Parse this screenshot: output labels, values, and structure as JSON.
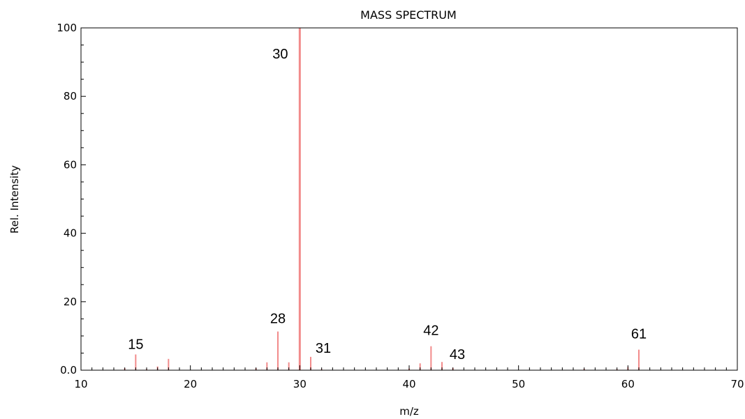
{
  "chart_data": {
    "type": "bar",
    "title": "MASS SPECTRUM",
    "xlabel": "m/z",
    "ylabel": "Rel. Intensity",
    "xlim": [
      10,
      70
    ],
    "ylim": [
      0,
      100
    ],
    "x_ticks": [
      "10",
      "20",
      "30",
      "40",
      "50",
      "60",
      "70"
    ],
    "y_ticks": [
      "0.0",
      "20",
      "40",
      "60",
      "80",
      "100"
    ],
    "grid": false,
    "bar_color": "#f28b8b",
    "peaks": [
      {
        "mz": 14,
        "intensity": 0.6
      },
      {
        "mz": 15,
        "intensity": 4.6
      },
      {
        "mz": 16,
        "intensity": 0.3
      },
      {
        "mz": 17,
        "intensity": 1.1
      },
      {
        "mz": 18,
        "intensity": 3.3
      },
      {
        "mz": 26,
        "intensity": 0.6
      },
      {
        "mz": 27,
        "intensity": 2.3
      },
      {
        "mz": 28,
        "intensity": 11.3
      },
      {
        "mz": 29,
        "intensity": 2.3
      },
      {
        "mz": 30,
        "intensity": 100
      },
      {
        "mz": 31,
        "intensity": 3.9
      },
      {
        "mz": 32,
        "intensity": 0.3
      },
      {
        "mz": 40,
        "intensity": 0.5
      },
      {
        "mz": 41,
        "intensity": 2.0
      },
      {
        "mz": 42,
        "intensity": 7.0
      },
      {
        "mz": 43,
        "intensity": 2.4
      },
      {
        "mz": 44,
        "intensity": 0.7
      },
      {
        "mz": 56,
        "intensity": 0.4
      },
      {
        "mz": 59,
        "intensity": 0.3
      },
      {
        "mz": 60,
        "intensity": 0.9
      },
      {
        "mz": 61,
        "intensity": 6.0
      }
    ],
    "annotations": [
      {
        "text": "15",
        "mz": 15,
        "intensity": 4.6
      },
      {
        "text": "28",
        "mz": 28,
        "intensity": 11.3
      },
      {
        "text": "30",
        "mz": 30,
        "intensity": 100
      },
      {
        "text": "31",
        "mz": 31,
        "intensity": 3.9
      },
      {
        "text": "42",
        "mz": 42,
        "intensity": 7.0
      },
      {
        "text": "43",
        "mz": 43,
        "intensity": 2.4
      },
      {
        "text": "61",
        "mz": 61,
        "intensity": 6.0
      }
    ]
  }
}
